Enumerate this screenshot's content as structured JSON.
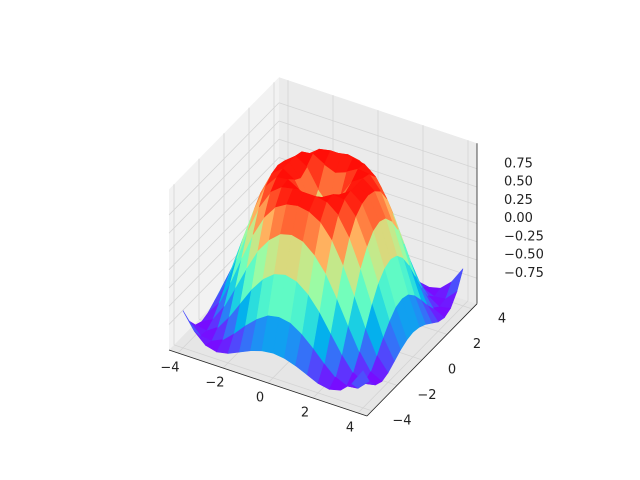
{
  "chart_data": {
    "type": "surface",
    "colormap": "rainbow",
    "grid": true,
    "x": [
      -4,
      -3.5,
      -3,
      -2.5,
      -2,
      -1.5,
      -1,
      -0.5,
      0,
      0.5,
      1,
      1.5,
      2,
      2.5,
      3,
      3.5,
      4
    ],
    "y": [
      -4,
      -3.5,
      -3,
      -2.5,
      -2,
      -1.5,
      -1,
      -0.5,
      0,
      0.5,
      1,
      1.5,
      2,
      2.5,
      3,
      3.5,
      4
    ],
    "z": [
      [
        -0.59,
        -0.82,
        -0.96,
        -1.0,
        -0.97,
        -0.9,
        -0.83,
        -0.78,
        -0.76,
        -0.78,
        -0.83,
        -0.9,
        -0.97,
        -1.0,
        -0.96,
        -0.82,
        -0.59
      ],
      [
        -0.82,
        -0.97,
        -0.99,
        -0.92,
        -0.78,
        -0.62,
        -0.48,
        -0.38,
        -0.35,
        -0.38,
        -0.48,
        -0.62,
        -0.78,
        -0.92,
        -0.99,
        -0.97,
        -0.82
      ],
      [
        -0.96,
        -0.99,
        -0.89,
        -0.69,
        -0.45,
        -0.21,
        -0.02,
        0.1,
        0.14,
        0.1,
        -0.02,
        -0.21,
        -0.45,
        -0.69,
        -0.89,
        -0.99,
        -0.96
      ],
      [
        -1.0,
        -0.92,
        -0.69,
        -0.38,
        -0.06,
        0.23,
        0.43,
        0.56,
        0.6,
        0.56,
        0.43,
        0.23,
        -0.06,
        -0.38,
        -0.69,
        -0.92,
        -1.0
      ],
      [
        -0.97,
        -0.78,
        -0.45,
        -0.06,
        0.31,
        0.6,
        0.79,
        0.88,
        0.91,
        0.88,
        0.79,
        0.6,
        0.31,
        -0.06,
        -0.45,
        -0.78,
        -0.97
      ],
      [
        -0.9,
        -0.62,
        -0.21,
        0.23,
        0.6,
        0.85,
        0.97,
        1.0,
        1.0,
        1.0,
        0.97,
        0.85,
        0.6,
        0.23,
        -0.21,
        -0.62,
        -0.9
      ],
      [
        -0.83,
        -0.48,
        -0.02,
        0.43,
        0.79,
        0.97,
        0.99,
        0.9,
        0.84,
        0.9,
        0.99,
        0.97,
        0.79,
        0.43,
        -0.02,
        -0.48,
        -0.83
      ],
      [
        -0.78,
        -0.38,
        0.1,
        0.56,
        0.88,
        1.0,
        0.9,
        0.65,
        0.48,
        0.65,
        0.9,
        1.0,
        0.88,
        0.56,
        0.1,
        -0.38,
        -0.78
      ],
      [
        -0.76,
        -0.35,
        0.14,
        0.6,
        0.91,
        1.0,
        0.84,
        0.48,
        0,
        0.48,
        0.84,
        1.0,
        0.91,
        0.6,
        0.14,
        -0.35,
        -0.76
      ],
      [
        -0.78,
        -0.38,
        0.1,
        0.56,
        0.88,
        1.0,
        0.9,
        0.65,
        0.48,
        0.65,
        0.9,
        1.0,
        0.88,
        0.56,
        0.1,
        -0.38,
        -0.78
      ],
      [
        -0.83,
        -0.48,
        -0.02,
        0.43,
        0.79,
        0.97,
        0.99,
        0.9,
        0.84,
        0.9,
        0.99,
        0.97,
        0.79,
        0.43,
        -0.02,
        -0.48,
        -0.83
      ],
      [
        -0.9,
        -0.62,
        -0.21,
        0.23,
        0.6,
        0.85,
        0.97,
        1.0,
        1.0,
        1.0,
        0.97,
        0.85,
        0.6,
        0.23,
        -0.21,
        -0.62,
        -0.9
      ],
      [
        -0.97,
        -0.78,
        -0.45,
        -0.06,
        0.31,
        0.6,
        0.79,
        0.88,
        0.91,
        0.88,
        0.79,
        0.6,
        0.31,
        -0.06,
        -0.45,
        -0.78,
        -0.97
      ],
      [
        -1.0,
        -0.92,
        -0.69,
        -0.38,
        -0.06,
        0.23,
        0.43,
        0.56,
        0.6,
        0.56,
        0.43,
        0.23,
        -0.06,
        -0.38,
        -0.69,
        -0.92,
        -1.0
      ],
      [
        -0.96,
        -0.99,
        -0.89,
        -0.69,
        -0.45,
        -0.21,
        -0.02,
        0.1,
        0.14,
        0.1,
        -0.02,
        -0.21,
        -0.45,
        -0.69,
        -0.89,
        -0.99,
        -0.96
      ],
      [
        -0.82,
        -0.97,
        -0.99,
        -0.92,
        -0.78,
        -0.62,
        -0.48,
        -0.38,
        -0.35,
        -0.38,
        -0.48,
        -0.62,
        -0.78,
        -0.92,
        -0.99,
        -0.97,
        -0.82
      ],
      [
        -0.59,
        -0.82,
        -0.96,
        -1.0,
        -0.97,
        -0.9,
        -0.83,
        -0.78,
        -0.76,
        -0.78,
        -0.83,
        -0.9,
        -0.97,
        -1.0,
        -0.96,
        -0.82,
        -0.59
      ]
    ],
    "xlim": [
      -4.4,
      4.4
    ],
    "ylim": [
      -4.4,
      4.4
    ],
    "zlim": [
      -1.1,
      1.1
    ],
    "xticks": [
      {
        "value": -4,
        "label": "−4"
      },
      {
        "value": -2,
        "label": "−2"
      },
      0,
      2,
      4
    ],
    "yticks": [
      {
        "value": -4,
        "label": "−4"
      },
      {
        "value": -2,
        "label": "−2"
      },
      0,
      2,
      4
    ],
    "zticks": [
      {
        "value": -0.75,
        "label": "−0.75"
      },
      {
        "value": -0.5,
        "label": "−0.50"
      },
      {
        "value": -0.25,
        "label": "−0.25"
      },
      {
        "value": 0,
        "label": "0.00"
      },
      {
        "value": 0.25,
        "label": "0.25"
      },
      {
        "value": 0.5,
        "label": "0.50"
      },
      {
        "value": 0.75,
        "label": "0.75"
      }
    ]
  }
}
